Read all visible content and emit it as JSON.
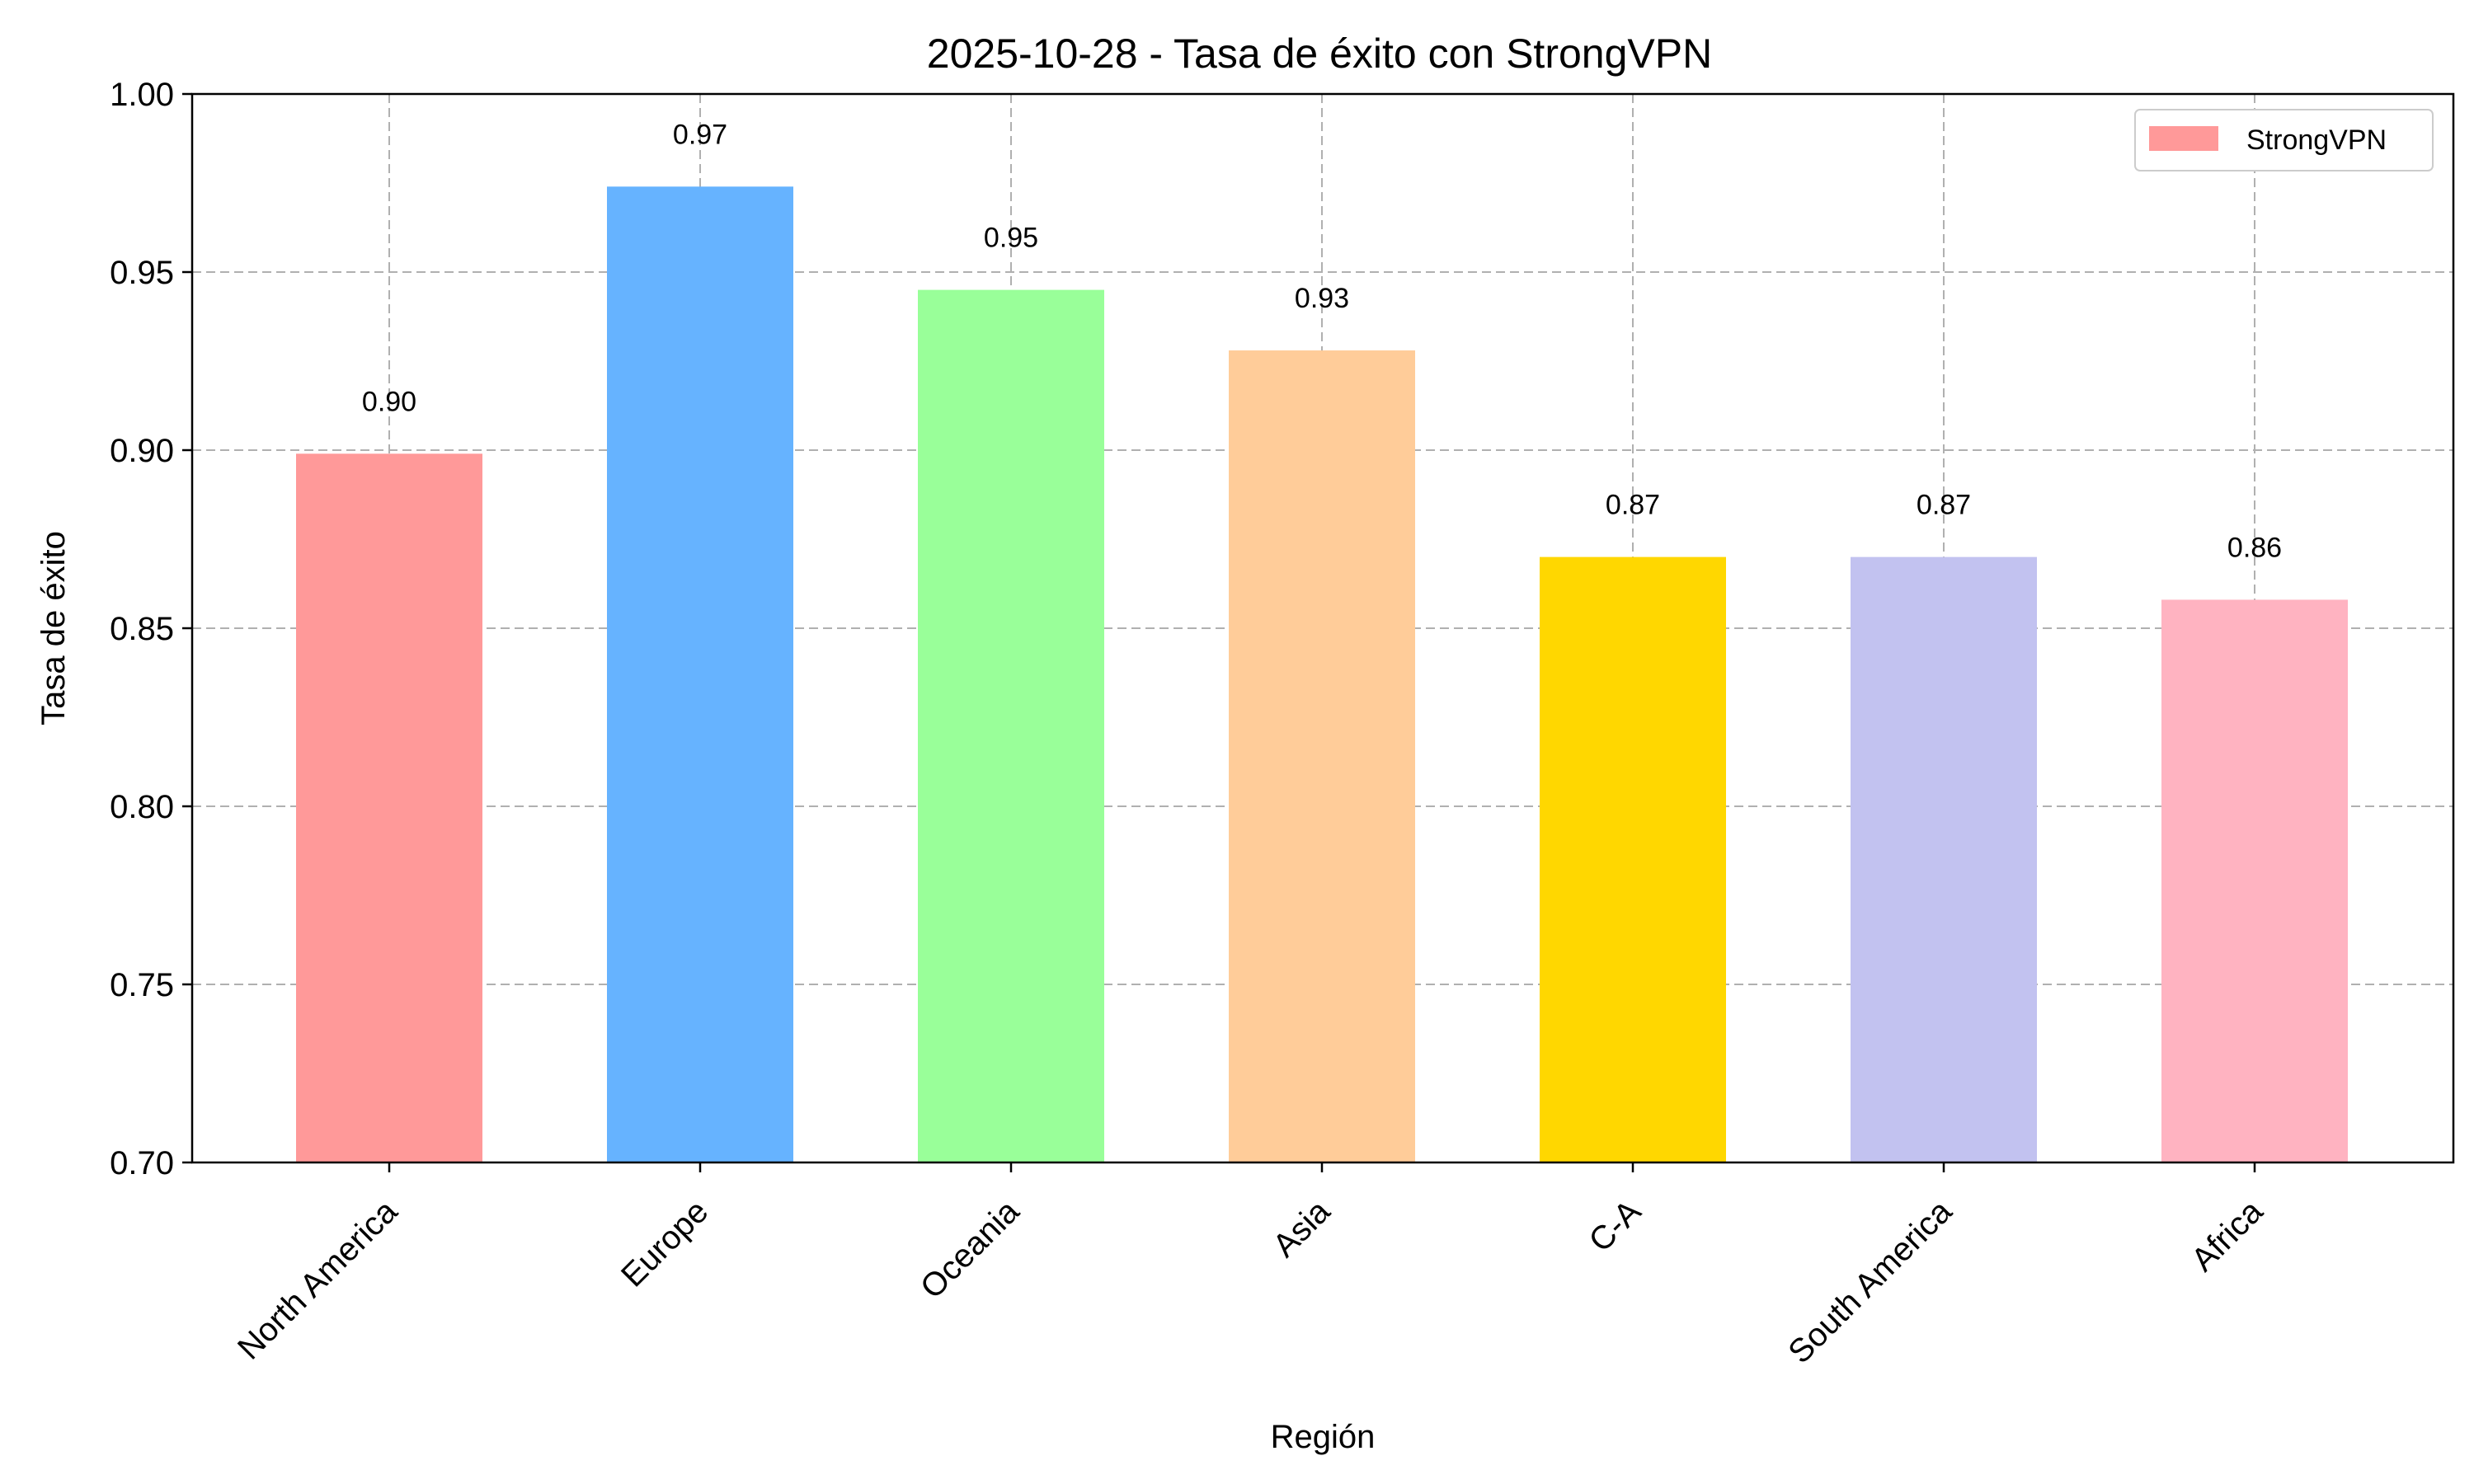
{
  "chart_data": {
    "type": "bar",
    "title": "2025-10-28 - Tasa de éxito con StrongVPN",
    "xlabel": "Región",
    "ylabel": "Tasa de éxito",
    "categories": [
      "North America",
      "Europe",
      "Oceania",
      "Asia",
      "C-A",
      "South America",
      "Africa"
    ],
    "series": [
      {
        "name": "StrongVPN",
        "values": [
          0.899,
          0.974,
          0.945,
          0.928,
          0.87,
          0.87,
          0.858
        ],
        "labels": [
          "0.90",
          "0.97",
          "0.95",
          "0.93",
          "0.87",
          "0.87",
          "0.86"
        ],
        "colors": [
          "#ff9999",
          "#66b3ff",
          "#99ff99",
          "#ffcc99",
          "#ffd700",
          "#c2c2f0",
          "#ffb3c1"
        ]
      }
    ],
    "ylim": [
      0.7,
      1.0
    ],
    "yticks": [
      "0.70",
      "0.75",
      "0.80",
      "0.85",
      "0.90",
      "0.95",
      "1.00"
    ],
    "ytick_values": [
      0.7,
      0.75,
      0.8,
      0.85,
      0.9,
      0.95,
      1.0
    ],
    "grid": true,
    "legend_position": "top-right",
    "legend_color": "#ff9999"
  }
}
